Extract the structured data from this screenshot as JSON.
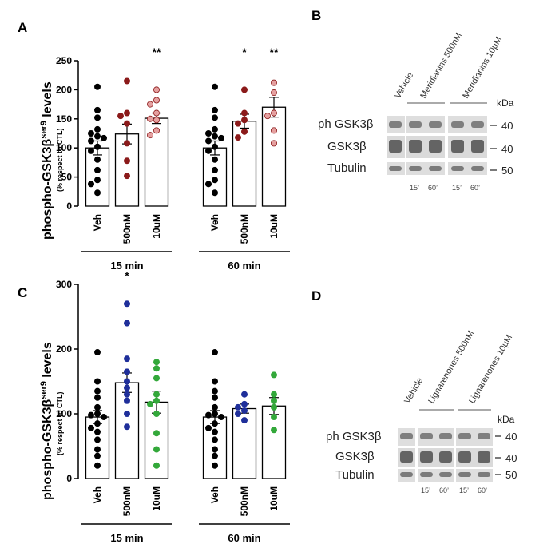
{
  "panel_letters": {
    "a": "A",
    "b": "B",
    "c": "C",
    "d": "D"
  },
  "y_axis_label_main": "phospho-GSK3β",
  "y_axis_label_sup": "ser9",
  "y_axis_label_suffix": " levels",
  "y_axis_label_sub": "(% respect to CTL)",
  "colors": {
    "vehicle": "#000000",
    "meridianins_500nM": "#8b1a1a",
    "meridianins_10uM": "#e5a0a0",
    "lignarenones_500nM": "#1f2f9a",
    "lignarenones_10uM": "#33a83a"
  },
  "chart_data": [
    {
      "panel": "A",
      "type": "bar",
      "ylim": [
        0,
        250
      ],
      "yticks": [
        "0",
        "50",
        "100",
        "150",
        "200",
        "250"
      ],
      "groups": [
        {
          "label": "15 min",
          "bars": [
            {
              "category": "Veh",
              "mean": 100,
              "sem": 12,
              "points": [
                205,
                165,
                152,
                132,
                125,
                120,
                117,
                112,
                102,
                95,
                80,
                62,
                45,
                38,
                23
              ],
              "color_key": "vehicle",
              "sig": ""
            },
            {
              "category": "500nM",
              "mean": 124,
              "sem": 17,
              "points": [
                215,
                160,
                155,
                142,
                108,
                78,
                52
              ],
              "color_key": "meridianins_500nM",
              "sig": ""
            },
            {
              "category": "10uM",
              "mean": 151,
              "sem": 9,
              "points": [
                200,
                182,
                175,
                160,
                150,
                148,
                130,
                122
              ],
              "color_key": "meridianins_10uM",
              "sig": "**"
            }
          ]
        },
        {
          "label": "60 min",
          "bars": [
            {
              "category": "Veh",
              "mean": 100,
              "sem": 12,
              "points": [
                205,
                165,
                152,
                132,
                125,
                120,
                117,
                112,
                102,
                95,
                80,
                62,
                45,
                38,
                23
              ],
              "color_key": "vehicle",
              "sig": ""
            },
            {
              "category": "500nM",
              "mean": 146,
              "sem": 12,
              "points": [
                200,
                160,
                148,
                142,
                128,
                118
              ],
              "color_key": "meridianins_500nM",
              "sig": "*"
            },
            {
              "category": "10uM",
              "mean": 170,
              "sem": 17,
              "points": [
                212,
                195,
                160,
                155,
                130,
                108
              ],
              "color_key": "meridianins_10uM",
              "sig": "**"
            }
          ]
        }
      ]
    },
    {
      "panel": "C",
      "type": "bar",
      "ylim": [
        0,
        300
      ],
      "yticks": [
        "0",
        "100",
        "200",
        "300"
      ],
      "groups": [
        {
          "label": "15 min",
          "bars": [
            {
              "category": "Veh",
              "mean": 95,
              "sem": 10,
              "points": [
                195,
                150,
                135,
                125,
                110,
                100,
                98,
                95,
                85,
                78,
                72,
                60,
                45,
                35,
                20
              ],
              "color_key": "vehicle",
              "sig": ""
            },
            {
              "category": "500nM",
              "mean": 148,
              "sem": 15,
              "points": [
                270,
                240,
                185,
                165,
                150,
                140,
                130,
                120,
                100,
                80
              ],
              "color_key": "lignarenones_500nM",
              "sig": "*"
            },
            {
              "category": "10uM",
              "mean": 118,
              "sem": 17,
              "points": [
                180,
                170,
                155,
                130,
                120,
                115,
                100,
                70,
                45,
                20
              ],
              "color_key": "lignarenones_10uM",
              "sig": ""
            }
          ]
        },
        {
          "label": "60 min",
          "bars": [
            {
              "category": "Veh",
              "mean": 95,
              "sem": 10,
              "points": [
                195,
                150,
                135,
                125,
                110,
                100,
                98,
                95,
                85,
                78,
                72,
                60,
                45,
                35,
                20
              ],
              "color_key": "vehicle",
              "sig": ""
            },
            {
              "category": "500nM",
              "mean": 108,
              "sem": 7,
              "points": [
                130,
                115,
                110,
                105,
                100,
                90
              ],
              "color_key": "lignarenones_500nM",
              "sig": ""
            },
            {
              "category": "10uM",
              "mean": 112,
              "sem": 13,
              "points": [
                160,
                130,
                120,
                110,
                95,
                75
              ],
              "color_key": "lignarenones_10uM",
              "sig": ""
            }
          ]
        }
      ]
    }
  ],
  "blot_b": {
    "lane_labels": [
      "Vehicle",
      "Meridianins 500nM",
      "Meridianins 10μM"
    ],
    "row_labels": [
      "ph GSK3β",
      "GSK3β",
      "Tubulin"
    ],
    "mw": [
      "40",
      "40",
      "50"
    ],
    "unit": "kDa",
    "time_labels": [
      "15’",
      "60’",
      "15’",
      "60’"
    ]
  },
  "blot_d": {
    "lane_labels": [
      "Vehicle",
      "Lignarenones 500nM",
      "Lignarenones 10μM"
    ],
    "row_labels": [
      "ph GSK3β",
      "GSK3β",
      "Tubulin"
    ],
    "mw": [
      "40",
      "40",
      "50"
    ],
    "unit": "kDa",
    "time_labels": [
      "15’",
      "60’",
      "15’",
      "60’"
    ]
  }
}
